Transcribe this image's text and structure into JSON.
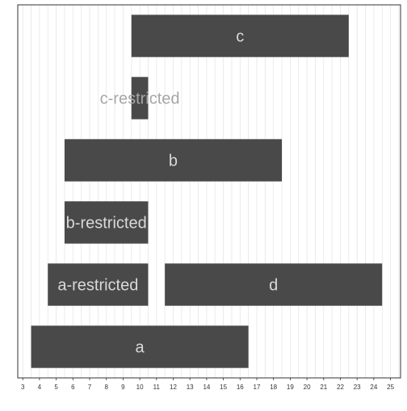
{
  "chart_data": {
    "type": "bar",
    "orientation": "horizontal-ranges",
    "title": "",
    "xlabel": "",
    "ylabel": "",
    "xlim": [
      2.7,
      25.6
    ],
    "grid": true,
    "legend": "none",
    "x_ticks": [
      3,
      4,
      5,
      6,
      7,
      8,
      9,
      10,
      11,
      12,
      13,
      14,
      15,
      16,
      17,
      18,
      19,
      20,
      21,
      22,
      23,
      24,
      25
    ],
    "bars": [
      {
        "label": "c",
        "start": 9.5,
        "end": 22.5,
        "row": 5
      },
      {
        "label": "c-restricted",
        "start": 9.5,
        "end": 10.5,
        "row": 4
      },
      {
        "label": "b",
        "start": 5.5,
        "end": 18.5,
        "row": 3
      },
      {
        "label": "b-restricted",
        "start": 5.5,
        "end": 10.5,
        "row": 2
      },
      {
        "label": "a-restricted",
        "start": 4.5,
        "end": 10.5,
        "row": 1
      },
      {
        "label": "d",
        "start": 11.5,
        "end": 24.5,
        "row": 1
      },
      {
        "label": "a",
        "start": 3.5,
        "end": 16.5,
        "row": 0
      }
    ],
    "colors": {
      "bar": "#4a4949",
      "label_on_bar": "#d9d9d9",
      "label_outside": "#a6a6a6",
      "grid": "#e6e6e6",
      "frame": "#333333",
      "tick_text": "#333333"
    }
  }
}
